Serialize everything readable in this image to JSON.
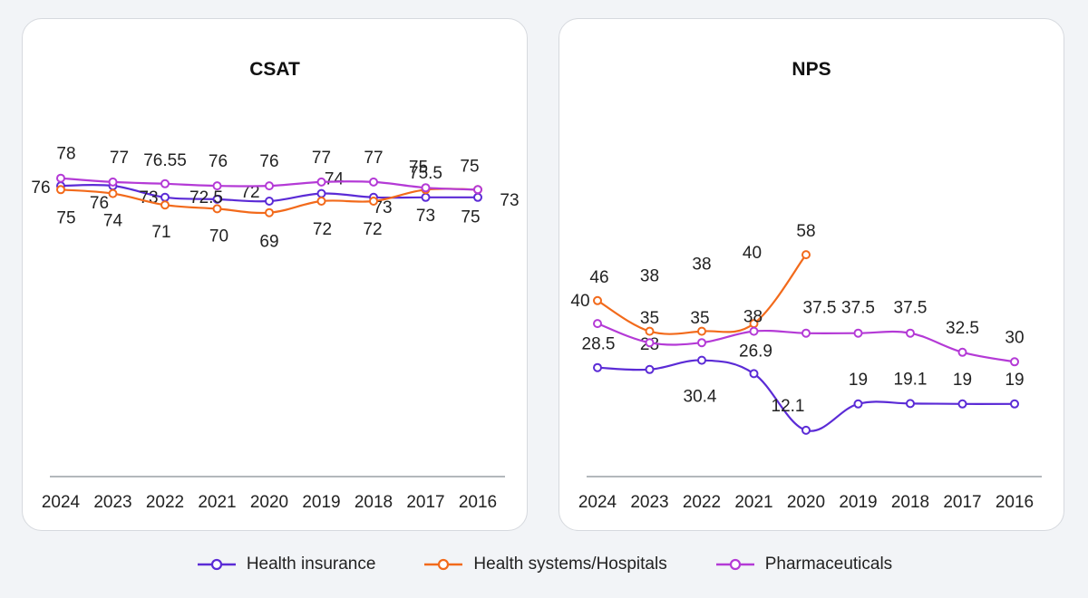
{
  "colors": {
    "health_insurance": "#5b2bd6",
    "health_systems": "#f26a1b",
    "pharmaceuticals": "#b43ad6"
  },
  "legend": [
    {
      "label": "Health insurance",
      "color": "#5b2bd6"
    },
    {
      "label": "Health systems/Hospitals",
      "color": "#f26a1b"
    },
    {
      "label": "Pharmaceuticals",
      "color": "#b43ad6"
    }
  ],
  "chart_data": [
    {
      "type": "line",
      "title": "CSAT",
      "categories": [
        "2024",
        "2023",
        "2022",
        "2021",
        "2020",
        "2019",
        "2018",
        "2017",
        "2016"
      ],
      "ylim": [
        0,
        90
      ],
      "grid": false,
      "legend_position": "bottom",
      "series": [
        {
          "name": "Health insurance",
          "color": "#5b2bd6",
          "values": [
            76,
            76,
            73,
            72.5,
            72,
            74,
            73,
            73,
            73
          ]
        },
        {
          "name": "Health systems/Hospitals",
          "color": "#f26a1b",
          "values": [
            75,
            74,
            71,
            70,
            69,
            72,
            72,
            75,
            75
          ]
        },
        {
          "name": "Pharmaceuticals",
          "color": "#b43ad6",
          "values": [
            78,
            77,
            76.55,
            76,
            76,
            77,
            77,
            75.5,
            75
          ]
        }
      ]
    },
    {
      "type": "line",
      "title": "NPS",
      "categories": [
        "2024",
        "2023",
        "2022",
        "2021",
        "2020",
        "2019",
        "2018",
        "2017",
        "2016"
      ],
      "ylim": [
        0,
        90
      ],
      "grid": false,
      "legend_position": "bottom",
      "series": [
        {
          "name": "Health insurance",
          "color": "#5b2bd6",
          "values": [
            28.5,
            28,
            30.4,
            26.9,
            12.1,
            19,
            19.1,
            19,
            19
          ]
        },
        {
          "name": "Health systems/Hospitals",
          "color": "#f26a1b",
          "values": [
            46,
            38,
            38,
            40,
            58,
            null,
            null,
            null,
            null
          ]
        },
        {
          "name": "Pharmaceuticals",
          "color": "#b43ad6",
          "values": [
            40,
            35,
            35,
            38,
            37.5,
            37.5,
            37.5,
            32.5,
            30
          ]
        }
      ]
    }
  ]
}
